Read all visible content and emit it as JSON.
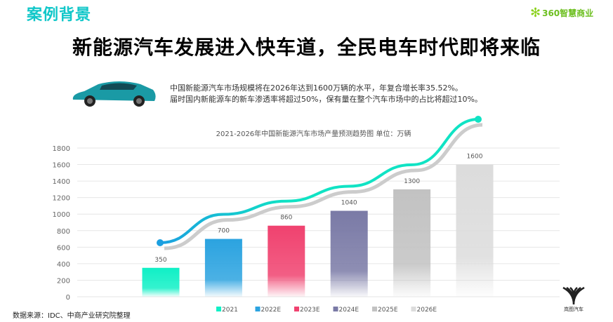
{
  "header": {
    "section": "案例背景",
    "brand": "360智慧商业",
    "title": "新能源汽车发展进入快车道，全民电车时代即将来临"
  },
  "description": [
    "中国新能源汽车市场规模将在2026年达到1600万辆的水平，年复合增长率35.52%。",
    "届时国内新能源车的新车渗透率将超过50%，保有量在整个汽车市场中的占比将超过10%。"
  ],
  "footer": {
    "source": "数据来源：IDC、中商产业研究院整理",
    "logo_text": "岚图汽车"
  },
  "chart_data": {
    "type": "bar",
    "title": "2021-2026年中国新能源汽车市场产量预测趋势图  单位：万辆",
    "categories": [
      "2021",
      "2022E",
      "2023E",
      "2024E",
      "2025E",
      "2026E"
    ],
    "values": [
      350,
      700,
      860,
      1040,
      1300,
      1600
    ],
    "colors": [
      "#10f0c6",
      "#2ba3e0",
      "#f0426f",
      "#7a7aa6",
      "#c2c2c2",
      "#dcdcdc"
    ],
    "yticks": [
      0,
      200,
      400,
      600,
      800,
      1000,
      1200,
      1400,
      1600,
      1800
    ],
    "ylim": [
      0,
      1800
    ],
    "legend": "bottom",
    "grid": true,
    "trend_color": "#10e3c4"
  }
}
